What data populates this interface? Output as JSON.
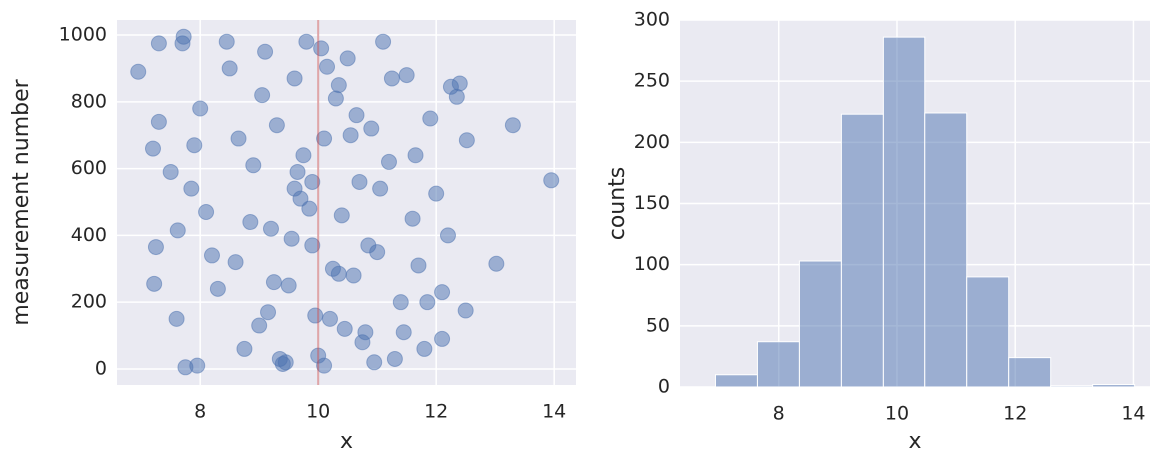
{
  "chart_data": [
    {
      "type": "scatter",
      "xlabel": "x",
      "ylabel": "measurement number",
      "xlim": [
        6.59,
        14.37
      ],
      "ylim": [
        -48,
        1045
      ],
      "xticks": [
        8,
        10,
        12,
        14
      ],
      "yticks": [
        0,
        200,
        400,
        600,
        800,
        1000
      ],
      "grid": true,
      "color": "#4c72b0",
      "vline": {
        "x": 10,
        "color": "#c44e52"
      },
      "x": [
        6.95,
        7.3,
        7.7,
        7.72,
        13.95,
        13.3,
        13.02,
        12.52,
        12.5,
        12.4,
        12.35,
        12.25,
        7.2,
        7.25,
        7.22,
        7.3,
        7.6,
        7.75,
        7.95,
        7.5,
        7.62,
        7.85,
        8.0,
        8.1,
        8.3,
        8.5,
        8.6,
        8.75,
        8.9,
        9.0,
        9.1,
        9.2,
        9.3,
        9.4,
        9.5,
        9.6,
        9.7,
        9.8,
        9.9,
        10.0,
        10.1,
        10.2,
        10.3,
        10.4,
        10.5,
        10.6,
        10.7,
        10.8,
        10.9,
        11.0,
        11.1,
        11.2,
        11.3,
        11.4,
        11.5,
        11.6,
        11.7,
        11.8,
        11.9,
        12.0,
        12.1,
        12.2,
        9.05,
        9.35,
        9.55,
        9.75,
        9.95,
        10.15,
        10.35,
        10.55,
        10.75,
        8.85,
        9.25,
        9.65,
        10.05,
        10.45,
        10.85,
        11.25,
        8.65,
        9.45,
        9.85,
        10.25,
        10.65,
        11.05,
        11.45,
        8.45,
        9.15,
        9.9,
        10.35,
        10.95,
        11.65,
        8.2,
        12.1,
        7.9,
        11.85,
        9.6,
        10.1
      ],
      "y": [
        890,
        975,
        975,
        995,
        565,
        730,
        315,
        685,
        175,
        855,
        815,
        845,
        660,
        365,
        255,
        740,
        150,
        5,
        10,
        590,
        415,
        540,
        780,
        470,
        240,
        900,
        320,
        60,
        610,
        130,
        950,
        420,
        730,
        15,
        250,
        870,
        510,
        980,
        370,
        40,
        690,
        150,
        810,
        460,
        930,
        280,
        560,
        110,
        720,
        350,
        980,
        620,
        30,
        200,
        880,
        450,
        310,
        60,
        750,
        525,
        230,
        400,
        820,
        30,
        390,
        640,
        160,
        905,
        285,
        700,
        80,
        440,
        260,
        590,
        960,
        120,
        370,
        870,
        690,
        20,
        480,
        300,
        760,
        540,
        110,
        980,
        170,
        560,
        850,
        20,
        640,
        340,
        90,
        670,
        200,
        540,
        10
      ]
    },
    {
      "type": "histogram",
      "xlabel": "x",
      "ylabel": "counts",
      "xlim": [
        6.33,
        14.28
      ],
      "ylim": [
        0,
        300
      ],
      "xticks": [
        8,
        10,
        12,
        14
      ],
      "yticks": [
        0,
        50,
        100,
        150,
        200,
        250,
        300
      ],
      "grid": true,
      "color": "#4c72b0",
      "bins": [
        6.93,
        7.64,
        8.35,
        9.06,
        9.77,
        10.47,
        11.18,
        11.89,
        12.6,
        13.31,
        14.02
      ],
      "counts": [
        10,
        37,
        103,
        223,
        286,
        224,
        90,
        24,
        1,
        2
      ]
    }
  ]
}
